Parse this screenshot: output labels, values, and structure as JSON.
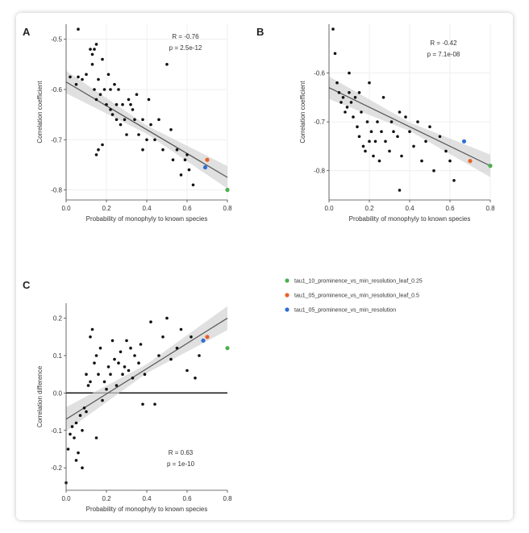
{
  "chart_data": [
    {
      "panel": "A",
      "type": "scatter",
      "stats": {
        "r": "R = -0.76",
        "p": "p = 2.5e-12"
      },
      "xlabel": "Probability of monophyly to known species",
      "ylabel": "Correlation coefficient",
      "xlim": [
        0,
        0.8
      ],
      "ylim": [
        -0.82,
        -0.47
      ],
      "xticks": [
        "0.0",
        "0.2",
        "0.4",
        "0.6",
        "0.8"
      ],
      "yticks": [
        -0.5,
        -0.6,
        -0.7,
        -0.8
      ],
      "yticklabels": [
        "-0.5",
        "-0.6",
        "-0.7",
        "-0.8"
      ],
      "grid": true,
      "points": [
        [
          0.06,
          -0.48
        ],
        [
          0.02,
          -0.575
        ],
        [
          0.05,
          -0.59
        ],
        [
          0.06,
          -0.575
        ],
        [
          0.08,
          -0.58
        ],
        [
          0.1,
          -0.57
        ],
        [
          0.12,
          -0.52
        ],
        [
          0.13,
          -0.53
        ],
        [
          0.14,
          -0.52
        ],
        [
          0.15,
          -0.51
        ],
        [
          0.13,
          -0.55
        ],
        [
          0.14,
          -0.6
        ],
        [
          0.15,
          -0.62
        ],
        [
          0.16,
          -0.58
        ],
        [
          0.17,
          -0.61
        ],
        [
          0.18,
          -0.54
        ],
        [
          0.19,
          -0.6
        ],
        [
          0.2,
          -0.63
        ],
        [
          0.21,
          -0.57
        ],
        [
          0.22,
          -0.6
        ],
        [
          0.22,
          -0.64
        ],
        [
          0.23,
          -0.65
        ],
        [
          0.24,
          -0.59
        ],
        [
          0.25,
          -0.63
        ],
        [
          0.25,
          -0.66
        ],
        [
          0.26,
          -0.6
        ],
        [
          0.27,
          -0.67
        ],
        [
          0.28,
          -0.63
        ],
        [
          0.29,
          -0.66
        ],
        [
          0.3,
          -0.69
        ],
        [
          0.31,
          -0.62
        ],
        [
          0.32,
          -0.63
        ],
        [
          0.33,
          -0.64
        ],
        [
          0.34,
          -0.66
        ],
        [
          0.35,
          -0.61
        ],
        [
          0.36,
          -0.69
        ],
        [
          0.38,
          -0.66
        ],
        [
          0.38,
          -0.72
        ],
        [
          0.4,
          -0.7
        ],
        [
          0.41,
          -0.62
        ],
        [
          0.42,
          -0.67
        ],
        [
          0.44,
          -0.7
        ],
        [
          0.46,
          -0.66
        ],
        [
          0.48,
          -0.72
        ],
        [
          0.5,
          -0.55
        ],
        [
          0.52,
          -0.68
        ],
        [
          0.53,
          -0.74
        ],
        [
          0.55,
          -0.72
        ],
        [
          0.57,
          -0.77
        ],
        [
          0.59,
          -0.74
        ],
        [
          0.6,
          -0.73
        ],
        [
          0.61,
          -0.76
        ],
        [
          0.63,
          -0.79
        ],
        [
          0.15,
          -0.73
        ],
        [
          0.16,
          -0.72
        ],
        [
          0.18,
          -0.71
        ]
      ],
      "fit": {
        "x": [
          0,
          0.8
        ],
        "y": [
          -0.585,
          -0.775
        ]
      },
      "highlights": [
        [
          0.8,
          -0.8
        ],
        [
          0.7,
          -0.74
        ],
        [
          0.69,
          -0.755
        ]
      ]
    },
    {
      "panel": "B",
      "type": "scatter",
      "stats": {
        "r": "R = -0.42",
        "p": "p = 7.1e-08"
      },
      "xlabel": "Probability of monophyly to known species",
      "ylabel": "Correlation coefficient",
      "xlim": [
        0,
        0.8
      ],
      "ylim": [
        -0.86,
        -0.5
      ],
      "xticks": [
        "0.0",
        "0.2",
        "0.4",
        "0.6",
        "0.8"
      ],
      "yticks": [
        -0.6,
        -0.7,
        -0.8
      ],
      "yticklabels": [
        "-0.6",
        "-0.7",
        "-0.8"
      ],
      "grid": true,
      "points": [
        [
          0.02,
          -0.51
        ],
        [
          0.03,
          -0.56
        ],
        [
          0.04,
          -0.62
        ],
        [
          0.05,
          -0.64
        ],
        [
          0.06,
          -0.66
        ],
        [
          0.07,
          -0.65
        ],
        [
          0.08,
          -0.68
        ],
        [
          0.09,
          -0.67
        ],
        [
          0.1,
          -0.64
        ],
        [
          0.11,
          -0.66
        ],
        [
          0.12,
          -0.69
        ],
        [
          0.13,
          -0.65
        ],
        [
          0.14,
          -0.71
        ],
        [
          0.15,
          -0.73
        ],
        [
          0.16,
          -0.68
        ],
        [
          0.17,
          -0.75
        ],
        [
          0.18,
          -0.76
        ],
        [
          0.19,
          -0.7
        ],
        [
          0.2,
          -0.74
        ],
        [
          0.21,
          -0.72
        ],
        [
          0.22,
          -0.77
        ],
        [
          0.23,
          -0.74
        ],
        [
          0.24,
          -0.7
        ],
        [
          0.25,
          -0.78
        ],
        [
          0.26,
          -0.72
        ],
        [
          0.27,
          -0.65
        ],
        [
          0.28,
          -0.74
        ],
        [
          0.3,
          -0.76
        ],
        [
          0.31,
          -0.7
        ],
        [
          0.32,
          -0.72
        ],
        [
          0.34,
          -0.73
        ],
        [
          0.35,
          -0.68
        ],
        [
          0.36,
          -0.77
        ],
        [
          0.38,
          -0.69
        ],
        [
          0.4,
          -0.72
        ],
        [
          0.42,
          -0.75
        ],
        [
          0.44,
          -0.7
        ],
        [
          0.46,
          -0.78
        ],
        [
          0.48,
          -0.74
        ],
        [
          0.5,
          -0.71
        ],
        [
          0.52,
          -0.8
        ],
        [
          0.55,
          -0.73
        ],
        [
          0.58,
          -0.76
        ],
        [
          0.6,
          -0.78
        ],
        [
          0.62,
          -0.82
        ],
        [
          0.35,
          -0.84
        ],
        [
          0.1,
          -0.6
        ],
        [
          0.2,
          -0.62
        ],
        [
          0.15,
          -0.64
        ]
      ],
      "fit": {
        "x": [
          0,
          0.8
        ],
        "y": [
          -0.63,
          -0.79
        ]
      },
      "highlights": [
        [
          0.8,
          -0.79
        ],
        [
          0.7,
          -0.78
        ],
        [
          0.67,
          -0.74
        ]
      ]
    },
    {
      "panel": "C",
      "type": "scatter",
      "stats": {
        "r": "R = 0.63",
        "p": "p = 1e-10"
      },
      "xlabel": "Probability of monophyly to known species",
      "ylabel": "Correlation difference",
      "xlim": [
        0,
        0.8
      ],
      "ylim": [
        -0.26,
        0.24
      ],
      "xticks": [
        "0.0",
        "0.2",
        "0.4",
        "0.6",
        "0.8"
      ],
      "yticks": [
        0.2,
        0.1,
        0.0,
        -0.1,
        -0.2
      ],
      "yticklabels": [
        "0.2",
        "0.1",
        "0.0",
        "-0.1",
        "-0.2"
      ],
      "grid": false,
      "zero_line": true,
      "points": [
        [
          0.0,
          -0.24
        ],
        [
          0.01,
          -0.15
        ],
        [
          0.02,
          -0.11
        ],
        [
          0.03,
          -0.09
        ],
        [
          0.04,
          -0.12
        ],
        [
          0.05,
          -0.08
        ],
        [
          0.06,
          -0.16
        ],
        [
          0.07,
          -0.06
        ],
        [
          0.08,
          -0.1
        ],
        [
          0.09,
          -0.04
        ],
        [
          0.1,
          0.05
        ],
        [
          0.11,
          0.02
        ],
        [
          0.12,
          0.15
        ],
        [
          0.12,
          0.03
        ],
        [
          0.13,
          0.17
        ],
        [
          0.14,
          0.08
        ],
        [
          0.15,
          0.1
        ],
        [
          0.16,
          0.05
        ],
        [
          0.17,
          0.12
        ],
        [
          0.18,
          -0.02
        ],
        [
          0.19,
          0.03
        ],
        [
          0.2,
          0.01
        ],
        [
          0.21,
          0.07
        ],
        [
          0.22,
          0.05
        ],
        [
          0.23,
          0.14
        ],
        [
          0.24,
          0.09
        ],
        [
          0.25,
          0.02
        ],
        [
          0.26,
          0.08
        ],
        [
          0.27,
          0.11
        ],
        [
          0.28,
          0.05
        ],
        [
          0.29,
          0.07
        ],
        [
          0.3,
          0.14
        ],
        [
          0.31,
          0.06
        ],
        [
          0.32,
          0.12
        ],
        [
          0.33,
          0.04
        ],
        [
          0.34,
          0.1
        ],
        [
          0.36,
          0.08
        ],
        [
          0.37,
          0.13
        ],
        [
          0.38,
          -0.03
        ],
        [
          0.39,
          0.05
        ],
        [
          0.42,
          0.19
        ],
        [
          0.44,
          -0.03
        ],
        [
          0.46,
          0.1
        ],
        [
          0.48,
          0.15
        ],
        [
          0.5,
          0.2
        ],
        [
          0.52,
          0.09
        ],
        [
          0.55,
          0.12
        ],
        [
          0.57,
          0.17
        ],
        [
          0.6,
          0.06
        ],
        [
          0.62,
          0.15
        ],
        [
          0.64,
          0.04
        ],
        [
          0.66,
          0.1
        ],
        [
          0.68,
          0.14
        ],
        [
          0.1,
          -0.05
        ],
        [
          0.15,
          -0.12
        ],
        [
          0.08,
          -0.2
        ],
        [
          0.05,
          -0.18
        ]
      ],
      "fit": {
        "x": [
          0,
          0.8
        ],
        "y": [
          -0.07,
          0.2
        ]
      },
      "highlights": [
        [
          0.8,
          0.12
        ],
        [
          0.7,
          0.15
        ],
        [
          0.68,
          0.14
        ]
      ]
    }
  ],
  "legend": {
    "items": [
      {
        "label": "tau1_10_prominence_vs_min_resolution_leaf_0.25",
        "color": "#4caf50"
      },
      {
        "label": "tau1_05_prominence_vs_min_resolution_leaf_0.5",
        "color": "#e8622a"
      },
      {
        "label": "tau1_05_prominence_vs_min_resolution",
        "color": "#2f6fd6"
      }
    ]
  },
  "colors": {
    "points": "#111111",
    "fit": "#555555",
    "band": "#d3d3d3",
    "grid": "#efefef"
  }
}
